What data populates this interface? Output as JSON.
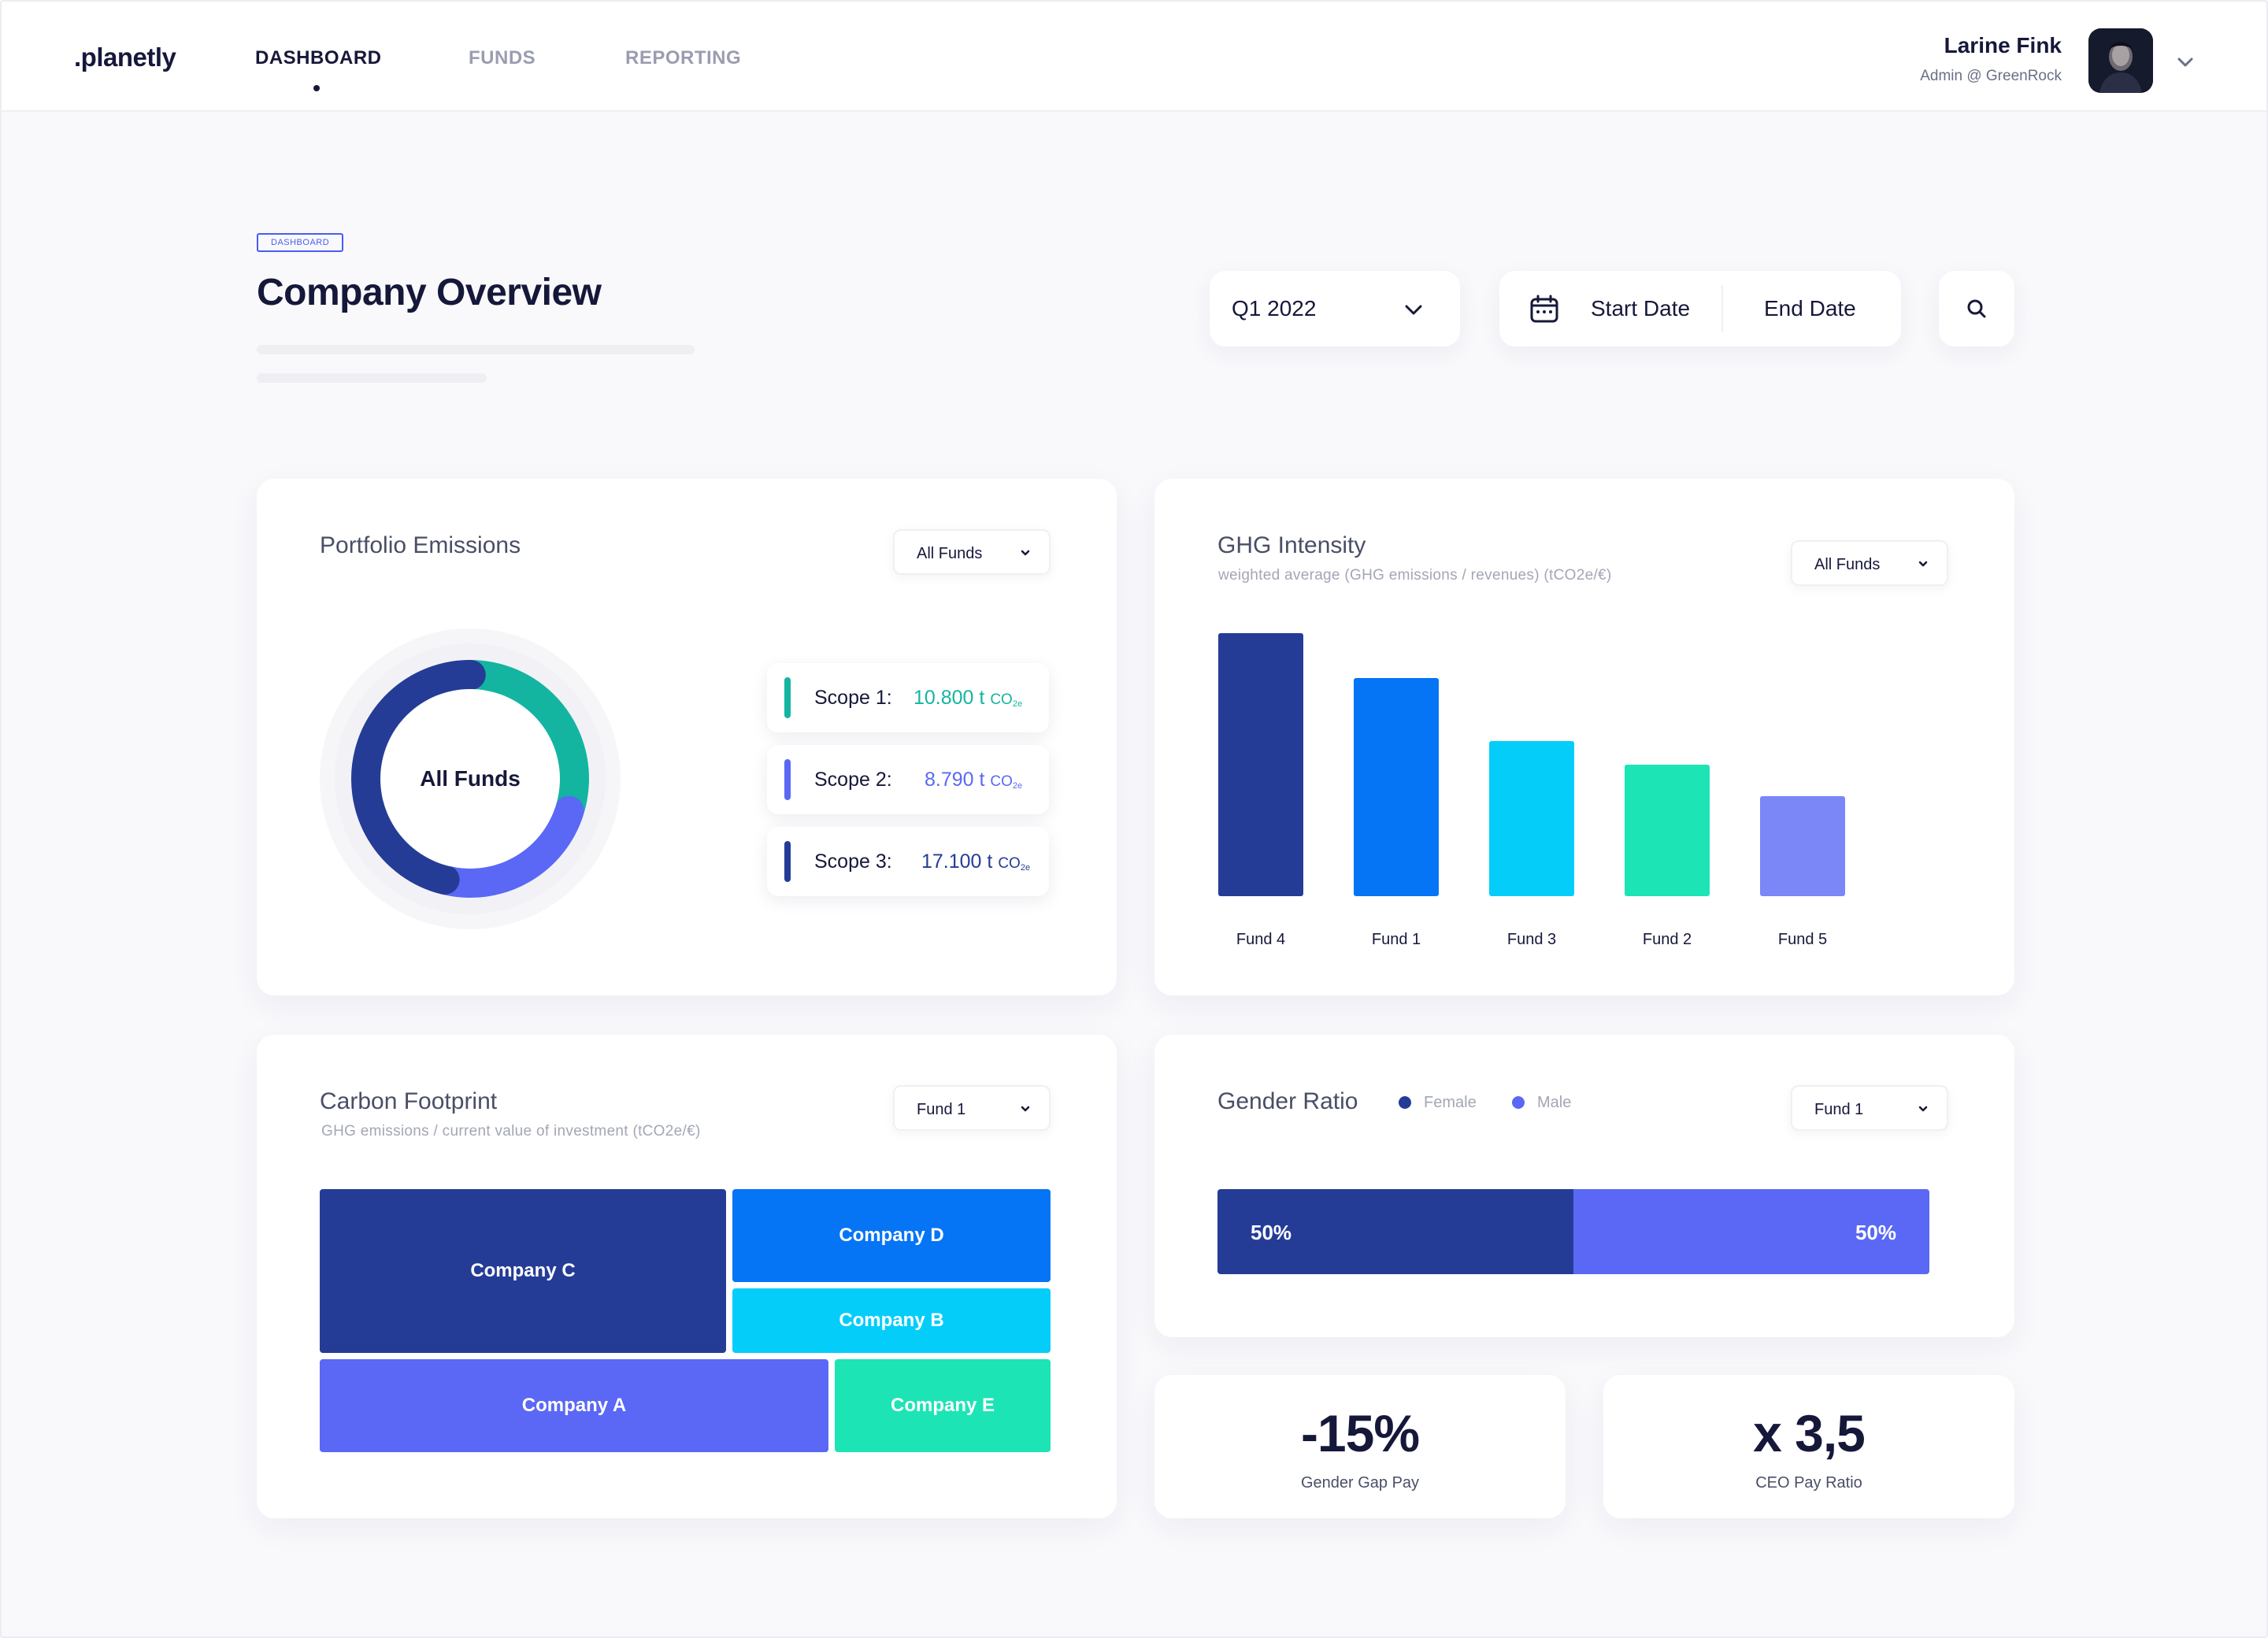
{
  "app": {
    "logo": ".planetly"
  },
  "nav": {
    "items": [
      {
        "label": "DASHBOARD",
        "active": true
      },
      {
        "label": "FUNDS",
        "active": false
      },
      {
        "label": "REPORTING",
        "active": false
      }
    ]
  },
  "user": {
    "name": "Larine Fink",
    "role": "Admin @ GreenRock"
  },
  "page": {
    "breadcrumb": "DASHBOARD",
    "title": "Company Overview"
  },
  "filters": {
    "period": "Q1 2022",
    "start_date": "Start Date",
    "end_date": "End Date"
  },
  "portfolio_emissions": {
    "title": "Portfolio Emissions",
    "filter": "All Funds",
    "center_label": "All Funds",
    "scopes": [
      {
        "label": "Scope 1:",
        "value": "10.800",
        "unit": "t",
        "unit_co": "CO",
        "unit_sub": "2",
        "unit_e": "e",
        "color": "#13b5a0"
      },
      {
        "label": "Scope 2:",
        "value": "8.790",
        "unit": "t",
        "unit_co": "CO",
        "unit_sub": "2",
        "unit_e": "e",
        "color": "#5a68f5"
      },
      {
        "label": "Scope 3:",
        "value": "17.100",
        "unit": "t",
        "unit_co": "CO",
        "unit_sub": "2",
        "unit_e": "e",
        "color": "#253c96"
      }
    ]
  },
  "ghg_intensity": {
    "title": "GHG Intensity",
    "subtitle": "weighted average (GHG emissions / revenues) (tCO2e/€)",
    "filter": "All Funds"
  },
  "carbon_footprint": {
    "title": "Carbon Footprint",
    "subtitle": "GHG emissions / current value of investment (tCO2e/€)",
    "filter": "Fund 1",
    "companies": [
      {
        "name": "Company C",
        "color": "#253c96"
      },
      {
        "name": "Company D",
        "color": "#0575f6"
      },
      {
        "name": "Company B",
        "color": "#05cdfa"
      },
      {
        "name": "Company A",
        "color": "#5a68f5"
      },
      {
        "name": "Company E",
        "color": "#1de4b5"
      }
    ]
  },
  "gender_ratio": {
    "title": "Gender Ratio",
    "filter": "Fund 1",
    "legend": [
      {
        "label": "Female",
        "color": "#253c96"
      },
      {
        "label": "Male",
        "color": "#5a68f5"
      }
    ],
    "female_pct": "50%",
    "male_pct": "50%",
    "female_share": 0.5
  },
  "kpis": [
    {
      "value": "-15%",
      "label": "Gender Gap Pay"
    },
    {
      "value": "x 3,5",
      "label": "CEO Pay Ratio"
    }
  ],
  "colors": {
    "navy": "#253c96",
    "blue": "#0575f6",
    "cyan": "#05cdfa",
    "mint": "#1de4b5",
    "periwinkle": "#7b86f7",
    "teal": "#13b5a0",
    "violet": "#5a68f5"
  },
  "chart_data": [
    {
      "type": "bar",
      "title": "GHG Intensity",
      "subtitle": "weighted average (GHG emissions / revenues) (tCO2e/€)",
      "categories": [
        "Fund 4",
        "Fund 1",
        "Fund 3",
        "Fund 2",
        "Fund 5"
      ],
      "values": [
        100,
        83,
        59,
        50,
        38
      ],
      "colors": [
        "#253c96",
        "#0575f6",
        "#05cdfa",
        "#1de4b5",
        "#7b86f7"
      ],
      "ylim": [
        0,
        100
      ],
      "grid": false
    },
    {
      "type": "pie",
      "title": "Portfolio Emissions",
      "categories": [
        "Scope 1",
        "Scope 2",
        "Scope 3"
      ],
      "values": [
        10800,
        8790,
        17100
      ],
      "colors": [
        "#13b5a0",
        "#5a68f5",
        "#253c96"
      ]
    }
  ]
}
